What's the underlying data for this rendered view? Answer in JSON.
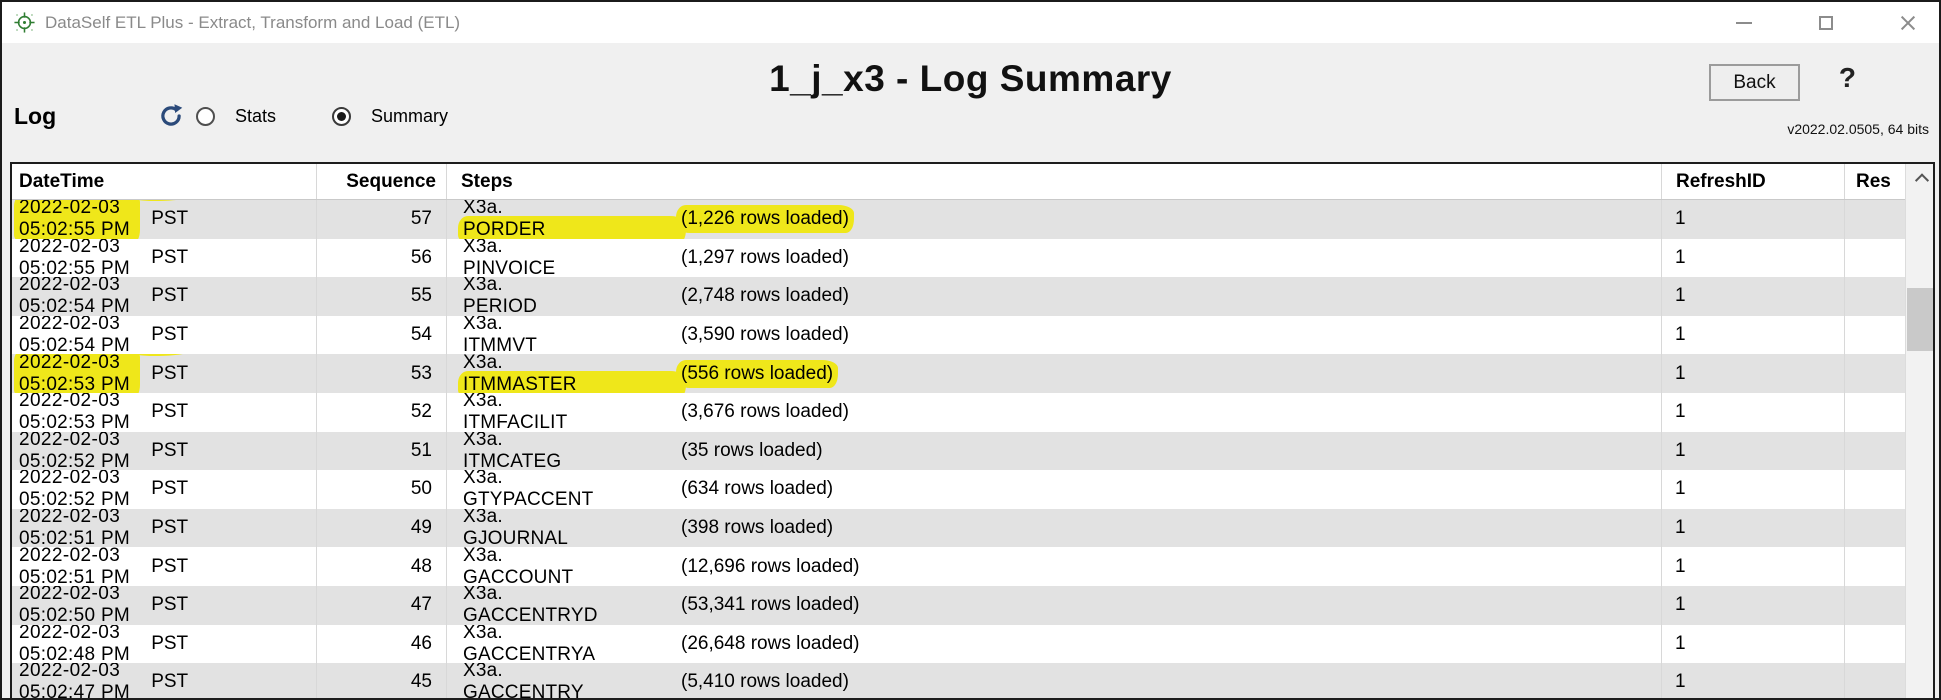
{
  "colors": {
    "highlight_yellow": "#efe71a",
    "row_alt": "#e2e2e2",
    "refresh_icon_blue": "#2b4a7a",
    "app_icon_green": "#2f7d32"
  },
  "window": {
    "title": "DataSelf ETL Plus - Extract, Transform and Load (ETL)"
  },
  "header": {
    "page_title": "1_j_x3 - Log Summary",
    "back_label": "Back",
    "help_glyph": "?",
    "version": "v2022.02.0505, 64 bits"
  },
  "toolbar": {
    "log_label": "Log",
    "radios": [
      {
        "label": "Stats",
        "selected": false
      },
      {
        "label": "Summary",
        "selected": true
      }
    ]
  },
  "table": {
    "columns": [
      "DateTime",
      "Sequence",
      "Steps",
      "RefreshID",
      "Res"
    ],
    "rows": [
      {
        "date": "2022-02-03",
        "time": "05:02:55 PM",
        "tz": "PST",
        "sequence": "57",
        "step_prefix": "X3a.",
        "step_name": "PORDER",
        "rows_loaded": "(1,226 rows loaded)",
        "refresh_id": "1",
        "hl": true
      },
      {
        "date": "2022-02-03",
        "time": "05:02:55 PM",
        "tz": "PST",
        "sequence": "56",
        "step_prefix": "X3a.",
        "step_name": "PINVOICE",
        "rows_loaded": "(1,297 rows loaded)",
        "refresh_id": "1",
        "hl": false
      },
      {
        "date": "2022-02-03",
        "time": "05:02:54 PM",
        "tz": "PST",
        "sequence": "55",
        "step_prefix": "X3a.",
        "step_name": "PERIOD",
        "rows_loaded": "(2,748 rows loaded)",
        "refresh_id": "1",
        "hl": false
      },
      {
        "date": "2022-02-03",
        "time": "05:02:54 PM",
        "tz": "PST",
        "sequence": "54",
        "step_prefix": "X3a.",
        "step_name": "ITMMVT",
        "rows_loaded": "(3,590 rows loaded)",
        "refresh_id": "1",
        "hl": false
      },
      {
        "date": "2022-02-03",
        "time": "05:02:53 PM",
        "tz": "PST",
        "sequence": "53",
        "step_prefix": "X3a.",
        "step_name": "ITMMASTER",
        "rows_loaded": "(556 rows loaded)",
        "refresh_id": "1",
        "hl": true
      },
      {
        "date": "2022-02-03",
        "time": "05:02:53 PM",
        "tz": "PST",
        "sequence": "52",
        "step_prefix": "X3a.",
        "step_name": "ITMFACILIT",
        "rows_loaded": "(3,676 rows loaded)",
        "refresh_id": "1",
        "hl": false
      },
      {
        "date": "2022-02-03",
        "time": "05:02:52 PM",
        "tz": "PST",
        "sequence": "51",
        "step_prefix": "X3a.",
        "step_name": "ITMCATEG",
        "rows_loaded": "(35 rows loaded)",
        "refresh_id": "1",
        "hl": false
      },
      {
        "date": "2022-02-03",
        "time": "05:02:52 PM",
        "tz": "PST",
        "sequence": "50",
        "step_prefix": "X3a.",
        "step_name": "GTYPACCENT",
        "rows_loaded": "(634 rows loaded)",
        "refresh_id": "1",
        "hl": false
      },
      {
        "date": "2022-02-03",
        "time": "05:02:51 PM",
        "tz": "PST",
        "sequence": "49",
        "step_prefix": "X3a.",
        "step_name": "GJOURNAL",
        "rows_loaded": "(398 rows loaded)",
        "refresh_id": "1",
        "hl": false
      },
      {
        "date": "2022-02-03",
        "time": "05:02:51 PM",
        "tz": "PST",
        "sequence": "48",
        "step_prefix": "X3a.",
        "step_name": "GACCOUNT",
        "rows_loaded": "(12,696 rows loaded)",
        "refresh_id": "1",
        "hl": false
      },
      {
        "date": "2022-02-03",
        "time": "05:02:50 PM",
        "tz": "PST",
        "sequence": "47",
        "step_prefix": "X3a.",
        "step_name": "GACCENTRYD",
        "rows_loaded": "(53,341 rows loaded)",
        "refresh_id": "1",
        "hl": false
      },
      {
        "date": "2022-02-03",
        "time": "05:02:48 PM",
        "tz": "PST",
        "sequence": "46",
        "step_prefix": "X3a.",
        "step_name": "GACCENTRYA",
        "rows_loaded": "(26,648 rows loaded)",
        "refresh_id": "1",
        "hl": false
      },
      {
        "date": "2022-02-03",
        "time": "05:02:47 PM",
        "tz": "PST",
        "sequence": "45",
        "step_prefix": "X3a.",
        "step_name": "GACCENTRY",
        "rows_loaded": "(5,410 rows loaded)",
        "refresh_id": "1",
        "hl": false
      }
    ]
  }
}
